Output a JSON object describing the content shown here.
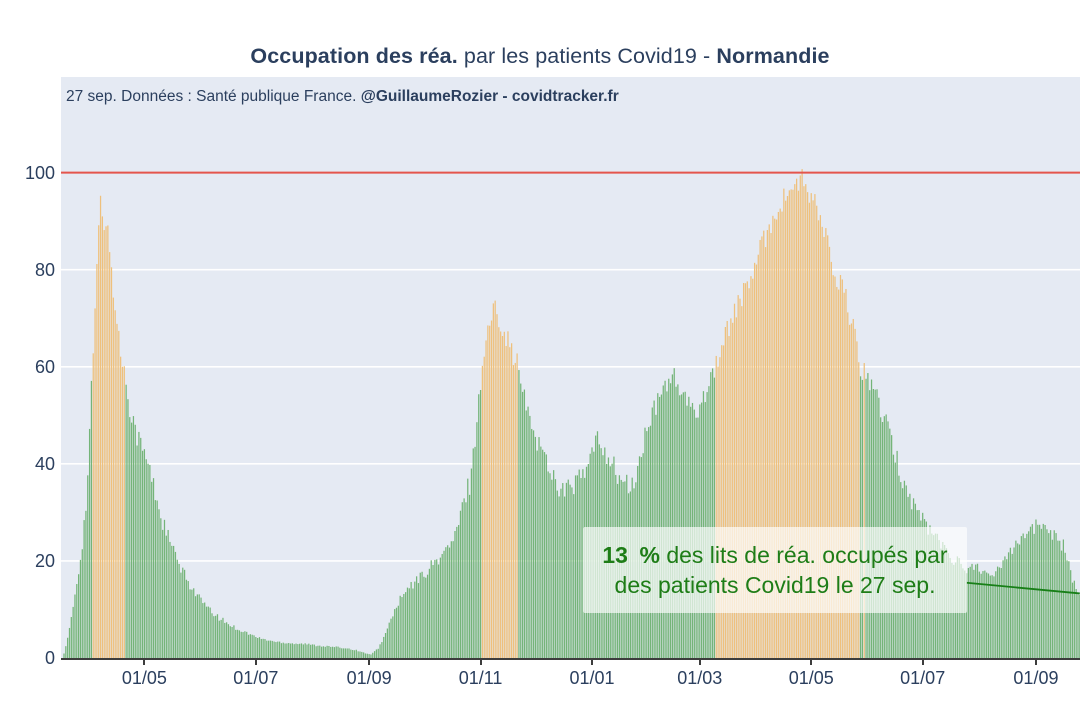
{
  "title": {
    "bold_lead": "Occupation des réa.",
    "regular_mid": " par les patients Covid19 - ",
    "bold_region": "Normandie"
  },
  "subtitle": {
    "regular": "27 sep. Données : Santé publique France. ",
    "bold": "@GuillaumeRozier - covidtracker.fr"
  },
  "annotation": {
    "value_bold": "13 %",
    "line1_rest": " des lits de réa. occupés par",
    "line2": "des patients Covid19 le 27 sep."
  },
  "colors": {
    "plot_background": "#e5eaf3",
    "text_navy": "#2b3f5e",
    "bar_green": "#74b478",
    "bar_orange": "#eec07c",
    "saturation_line_red": "#e4554c",
    "annotation_green": "#1e7d17",
    "trend_line_green": "#177f17",
    "gridline_white": "#ffffff",
    "axis_dark": "#3d3d3d"
  },
  "chart_data": {
    "type": "bar",
    "title": "Occupation des réa. par les patients Covid19 - Normandie",
    "ylabel": "",
    "xlabel": "",
    "unit": "% des lits de réa. occupés",
    "date_note": "27 sep.",
    "last_value_pct": 13,
    "x_start_date": "2020-03-18",
    "x_end_date": "2021-09-27",
    "days_total": 557,
    "x_tick_labels": [
      "01/05",
      "01/07",
      "01/09",
      "01/11",
      "01/01",
      "01/03",
      "01/05",
      "01/07",
      "01/09"
    ],
    "x_tick_days": [
      44,
      105,
      167,
      228,
      289,
      348,
      409,
      470,
      532
    ],
    "y_ticks": [
      0,
      20,
      40,
      60,
      80,
      100
    ],
    "ylim": [
      0,
      119.7
    ],
    "grid": "horizontal-white",
    "orange_threshold": 60,
    "saturation_line_value": 100,
    "keypoints_day_value": [
      [
        0,
        1
      ],
      [
        2,
        4
      ],
      [
        4,
        8
      ],
      [
        6,
        13
      ],
      [
        8,
        18
      ],
      [
        10,
        24
      ],
      [
        12,
        31
      ],
      [
        13,
        38
      ],
      [
        14,
        46
      ],
      [
        15,
        55
      ],
      [
        16,
        63
      ],
      [
        17,
        72
      ],
      [
        18,
        80
      ],
      [
        19,
        88
      ],
      [
        20,
        94
      ],
      [
        21,
        92
      ],
      [
        22,
        89
      ],
      [
        23,
        91
      ],
      [
        24,
        87
      ],
      [
        25,
        84
      ],
      [
        26,
        80
      ],
      [
        27,
        76
      ],
      [
        28,
        72
      ],
      [
        29,
        69
      ],
      [
        30,
        66
      ],
      [
        31,
        63
      ],
      [
        32,
        61
      ],
      [
        33,
        59
      ],
      [
        34,
        57
      ],
      [
        35,
        55
      ],
      [
        36,
        52
      ],
      [
        38,
        49
      ],
      [
        40,
        46
      ],
      [
        42,
        44
      ],
      [
        44,
        42
      ],
      [
        46,
        40
      ],
      [
        48,
        37
      ],
      [
        50,
        34
      ],
      [
        52,
        31
      ],
      [
        54,
        28
      ],
      [
        56,
        26
      ],
      [
        58,
        24
      ],
      [
        60,
        22
      ],
      [
        63,
        19
      ],
      [
        66,
        17
      ],
      [
        70,
        14.5
      ],
      [
        74,
        12.5
      ],
      [
        78,
        10.5
      ],
      [
        82,
        9
      ],
      [
        86,
        8
      ],
      [
        90,
        7
      ],
      [
        95,
        6
      ],
      [
        100,
        5.2
      ],
      [
        106,
        4.2
      ],
      [
        110,
        3.8
      ],
      [
        115,
        3.4
      ],
      [
        120,
        3.2
      ],
      [
        126,
        3
      ],
      [
        132,
        2.9
      ],
      [
        138,
        2.6
      ],
      [
        144,
        2.4
      ],
      [
        150,
        2.2
      ],
      [
        155,
        2
      ],
      [
        160,
        1.6
      ],
      [
        164,
        1.1
      ],
      [
        168,
        0.7
      ],
      [
        172,
        2
      ],
      [
        176,
        5
      ],
      [
        180,
        9
      ],
      [
        184,
        12
      ],
      [
        188,
        14
      ],
      [
        192,
        15.5
      ],
      [
        196,
        17
      ],
      [
        200,
        18.5
      ],
      [
        205,
        20.5
      ],
      [
        210,
        22.5
      ],
      [
        214,
        25
      ],
      [
        217,
        29
      ],
      [
        220,
        34
      ],
      [
        222,
        36
      ],
      [
        224,
        42
      ],
      [
        226,
        49
      ],
      [
        228,
        57
      ],
      [
        229,
        61
      ],
      [
        231,
        65
      ],
      [
        233,
        69
      ],
      [
        235,
        71.5
      ],
      [
        236,
        72
      ],
      [
        238,
        70.5
      ],
      [
        240,
        68.5
      ],
      [
        242,
        66.5
      ],
      [
        244,
        64.5
      ],
      [
        246,
        62.5
      ],
      [
        248,
        60.5
      ],
      [
        249,
        59
      ],
      [
        250,
        57
      ],
      [
        252,
        53.5
      ],
      [
        254,
        50
      ],
      [
        256,
        48
      ],
      [
        258,
        46
      ],
      [
        260,
        44
      ],
      [
        262,
        42.5
      ],
      [
        264,
        41
      ],
      [
        266,
        39
      ],
      [
        268,
        37.5
      ],
      [
        270,
        36
      ],
      [
        272,
        35
      ],
      [
        274,
        34.5
      ],
      [
        276,
        34.8
      ],
      [
        278,
        35.5
      ],
      [
        280,
        36.2
      ],
      [
        282,
        37
      ],
      [
        284,
        37.5
      ],
      [
        286,
        38.5
      ],
      [
        288,
        41
      ],
      [
        290,
        43.5
      ],
      [
        292,
        44.5
      ],
      [
        294,
        44
      ],
      [
        296,
        43
      ],
      [
        298,
        41.5
      ],
      [
        300,
        40
      ],
      [
        302,
        38.5
      ],
      [
        304,
        37
      ],
      [
        306,
        36
      ],
      [
        308,
        35.5
      ],
      [
        310,
        35.2
      ],
      [
        312,
        36
      ],
      [
        314,
        38.5
      ],
      [
        316,
        42
      ],
      [
        318,
        45.5
      ],
      [
        320,
        48
      ],
      [
        322,
        50
      ],
      [
        324,
        51.5
      ],
      [
        326,
        53.5
      ],
      [
        328,
        55.5
      ],
      [
        330,
        57
      ],
      [
        332,
        58.5
      ],
      [
        334,
        57.5
      ],
      [
        336,
        56
      ],
      [
        338,
        54.5
      ],
      [
        340,
        53
      ],
      [
        342,
        52
      ],
      [
        344,
        50.5
      ],
      [
        346,
        51
      ],
      [
        348,
        52.5
      ],
      [
        350,
        54
      ],
      [
        352,
        56
      ],
      [
        354,
        58
      ],
      [
        356,
        59.5
      ],
      [
        357,
        61
      ],
      [
        358,
        62
      ],
      [
        360,
        64
      ],
      [
        362,
        66
      ],
      [
        364,
        68.5
      ],
      [
        366,
        70.5
      ],
      [
        368,
        72.5
      ],
      [
        370,
        73.5
      ],
      [
        372,
        75
      ],
      [
        374,
        76.5
      ],
      [
        376,
        78.5
      ],
      [
        378,
        80.5
      ],
      [
        380,
        82.5
      ],
      [
        382,
        85
      ],
      [
        384,
        87
      ],
      [
        386,
        88.5
      ],
      [
        388,
        90.5
      ],
      [
        390,
        92
      ],
      [
        392,
        93.5
      ],
      [
        394,
        94.5
      ],
      [
        396,
        96
      ],
      [
        398,
        97
      ],
      [
        400,
        96.5
      ],
      [
        402,
        98
      ],
      [
        404,
        98.5
      ],
      [
        406,
        97
      ],
      [
        408,
        95.5
      ],
      [
        410,
        94
      ],
      [
        412,
        92.5
      ],
      [
        414,
        90.5
      ],
      [
        416,
        88
      ],
      [
        418,
        86
      ],
      [
        420,
        82
      ],
      [
        422,
        77.5
      ],
      [
        423,
        74.5
      ],
      [
        425,
        77.5
      ],
      [
        426,
        76.5
      ],
      [
        428,
        74
      ],
      [
        430,
        71
      ],
      [
        432,
        67.5
      ],
      [
        434,
        63.5
      ],
      [
        435,
        61
      ],
      [
        436,
        59
      ],
      [
        438,
        59.5
      ],
      [
        440,
        58
      ],
      [
        442,
        56.5
      ],
      [
        444,
        54.5
      ],
      [
        446,
        52.5
      ],
      [
        448,
        50
      ],
      [
        450,
        48
      ],
      [
        452,
        45.5
      ],
      [
        454,
        43
      ],
      [
        456,
        40.5
      ],
      [
        458,
        38
      ],
      [
        462,
        34
      ],
      [
        466,
        31
      ],
      [
        470,
        28.5
      ],
      [
        474,
        26.5
      ],
      [
        478,
        24.5
      ],
      [
        482,
        22.5
      ],
      [
        486,
        21
      ],
      [
        490,
        19.5
      ],
      [
        493,
        18.5
      ],
      [
        496,
        18.2
      ],
      [
        498,
        19
      ],
      [
        500,
        19.3
      ],
      [
        502,
        18.5
      ],
      [
        505,
        16.8
      ],
      [
        507,
        16.2
      ],
      [
        510,
        17.5
      ],
      [
        513,
        19.5
      ],
      [
        516,
        21.5
      ],
      [
        519,
        23
      ],
      [
        522,
        24.5
      ],
      [
        525,
        25.5
      ],
      [
        528,
        26.3
      ],
      [
        531,
        26.8
      ],
      [
        534,
        27.2
      ],
      [
        537,
        27
      ],
      [
        540,
        26.5
      ],
      [
        543,
        25.5
      ],
      [
        545,
        24.5
      ],
      [
        547,
        23
      ],
      [
        549,
        20.5
      ],
      [
        551,
        17.5
      ],
      [
        553,
        15
      ],
      [
        555,
        14
      ],
      [
        556,
        13
      ]
    ],
    "trend_line": {
      "from_day": 494,
      "from_value": 15.5,
      "to_day": 556,
      "to_value": 13.3
    },
    "legend": "none"
  },
  "geometry_note": "bars daily; green below 60%, orange at/above 60%; red line = 100% saturation"
}
